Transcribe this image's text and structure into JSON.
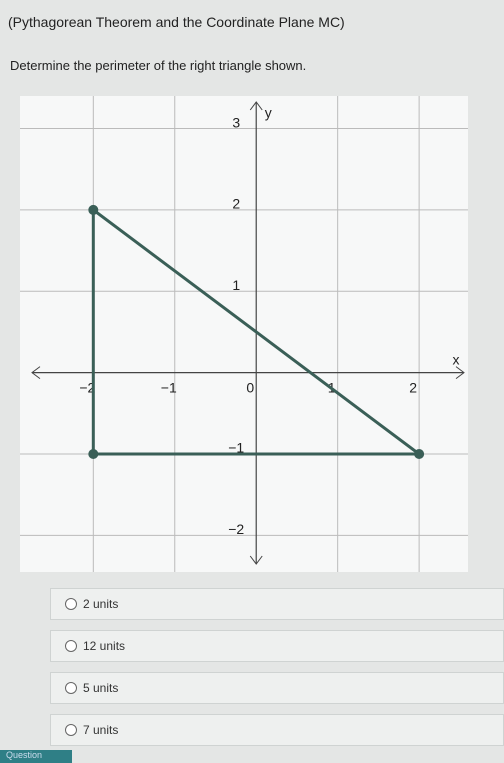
{
  "header": {
    "title": "(Pythagorean Theorem and the Coordinate Plane MC)"
  },
  "question": {
    "text": "Determine the perimeter of the right triangle shown."
  },
  "graph": {
    "x_label": "x",
    "y_label": "y",
    "xlim": [
      -2.9,
      2.6
    ],
    "ylim": [
      -2.45,
      3.4
    ],
    "xticks": [
      {
        "value": -2,
        "label": "−2"
      },
      {
        "value": -1,
        "label": "−1"
      },
      {
        "value": 0,
        "label": "0"
      },
      1,
      2
    ],
    "yticks": [
      3,
      2,
      1,
      {
        "value": -1,
        "label": "−1"
      },
      {
        "value": -2,
        "label": "−2"
      }
    ],
    "vertices_x": [
      -2,
      -2,
      2
    ],
    "vertices_y": [
      2,
      -1,
      -1
    ]
  },
  "options": [
    "2 units",
    "12 units",
    "5 units",
    "7 units"
  ],
  "footer": {
    "tab": "Question"
  }
}
